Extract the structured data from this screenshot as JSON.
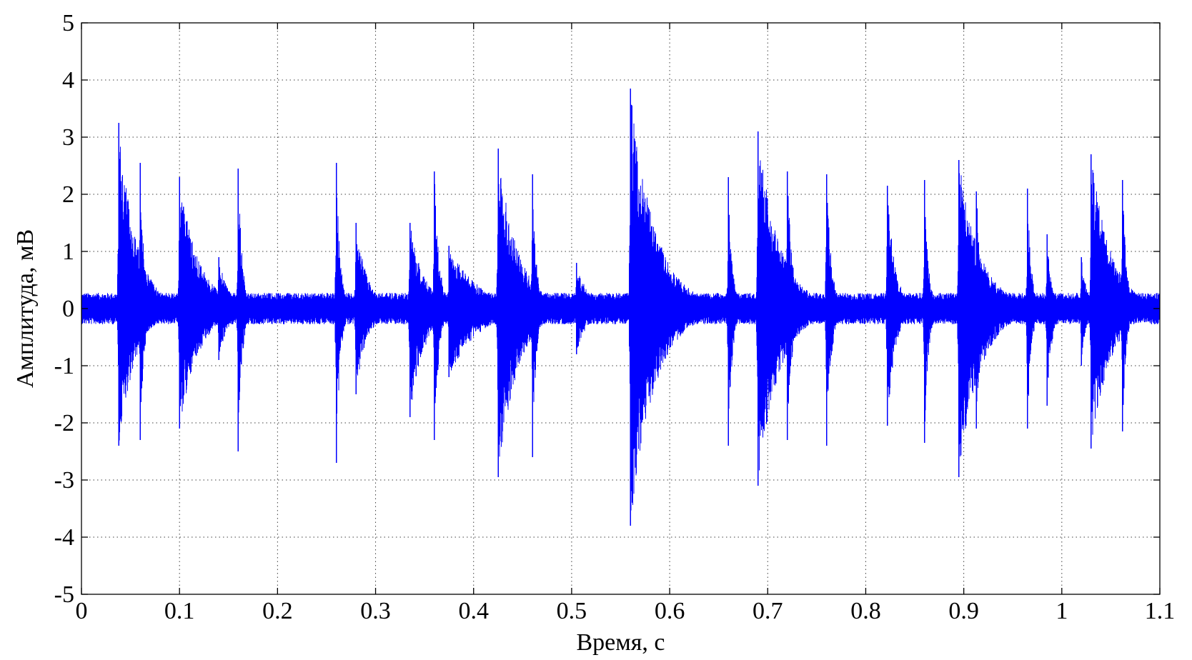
{
  "chart_data": {
    "type": "line",
    "xlabel": "Время, с",
    "ylabel": "Амплитуда, мВ",
    "xlim": [
      0,
      1.1
    ],
    "ylim": [
      -5,
      5
    ],
    "x_ticks": [
      0,
      0.1,
      0.2,
      0.3,
      0.4,
      0.5,
      0.6,
      0.7,
      0.8,
      0.9,
      1.0,
      1.1
    ],
    "x_tick_labels": [
      "0",
      "0.1",
      "0.2",
      "0.3",
      "0.4",
      "0.5",
      "0.6",
      "0.7",
      "0.8",
      "0.9",
      "1",
      "1.1"
    ],
    "y_ticks": [
      5,
      4,
      3,
      2,
      1,
      0,
      -1,
      -2,
      -3,
      -4,
      -5
    ],
    "y_tick_labels": [
      "5",
      "4",
      "3",
      "2",
      "1",
      "0",
      "-1",
      "-2",
      "-3",
      "-4",
      "-5"
    ],
    "grid": true,
    "line_color": "#0000FF",
    "baseline_amplitude": 0.25,
    "bursts": [
      {
        "t": 0.038,
        "peak": 3.25,
        "trough": -2.4,
        "decay": 0.018
      },
      {
        "t": 0.06,
        "peak": 2.55,
        "trough": -2.3,
        "decay": 0.004
      },
      {
        "t": 0.1,
        "peak": 2.3,
        "trough": -2.1,
        "decay": 0.02
      },
      {
        "t": 0.14,
        "peak": 0.9,
        "trough": -0.9,
        "decay": 0.01
      },
      {
        "t": 0.16,
        "peak": 2.45,
        "trough": -2.5,
        "decay": 0.004
      },
      {
        "t": 0.26,
        "peak": 2.55,
        "trough": -2.7,
        "decay": 0.004
      },
      {
        "t": 0.28,
        "peak": 1.5,
        "trough": -1.5,
        "decay": 0.012
      },
      {
        "t": 0.335,
        "peak": 1.5,
        "trough": -1.9,
        "decay": 0.015
      },
      {
        "t": 0.36,
        "peak": 2.4,
        "trough": -2.3,
        "decay": 0.005
      },
      {
        "t": 0.375,
        "peak": 1.1,
        "trough": -1.2,
        "decay": 0.03
      },
      {
        "t": 0.425,
        "peak": 2.8,
        "trough": -2.95,
        "decay": 0.02
      },
      {
        "t": 0.46,
        "peak": 2.35,
        "trough": -2.6,
        "decay": 0.004
      },
      {
        "t": 0.505,
        "peak": 0.8,
        "trough": -0.8,
        "decay": 0.012
      },
      {
        "t": 0.56,
        "peak": 3.85,
        "trough": -3.8,
        "decay": 0.025
      },
      {
        "t": 0.66,
        "peak": 2.3,
        "trough": -2.4,
        "decay": 0.004
      },
      {
        "t": 0.69,
        "peak": 3.1,
        "trough": -3.1,
        "decay": 0.022
      },
      {
        "t": 0.72,
        "peak": 2.4,
        "trough": -2.3,
        "decay": 0.005
      },
      {
        "t": 0.76,
        "peak": 2.35,
        "trough": -2.4,
        "decay": 0.005
      },
      {
        "t": 0.822,
        "peak": 2.15,
        "trough": -2.05,
        "decay": 0.008
      },
      {
        "t": 0.86,
        "peak": 2.25,
        "trough": -2.35,
        "decay": 0.004
      },
      {
        "t": 0.895,
        "peak": 2.6,
        "trough": -2.95,
        "decay": 0.022
      },
      {
        "t": 0.913,
        "peak": 2.05,
        "trough": -2.1,
        "decay": 0.005
      },
      {
        "t": 0.965,
        "peak": 2.1,
        "trough": -2.1,
        "decay": 0.004
      },
      {
        "t": 0.985,
        "peak": 1.3,
        "trough": -1.7,
        "decay": 0.005
      },
      {
        "t": 1.02,
        "peak": 0.9,
        "trough": -1.0,
        "decay": 0.006
      },
      {
        "t": 1.03,
        "peak": 2.7,
        "trough": -2.45,
        "decay": 0.02
      },
      {
        "t": 1.062,
        "peak": 2.25,
        "trough": -2.15,
        "decay": 0.004
      }
    ]
  }
}
